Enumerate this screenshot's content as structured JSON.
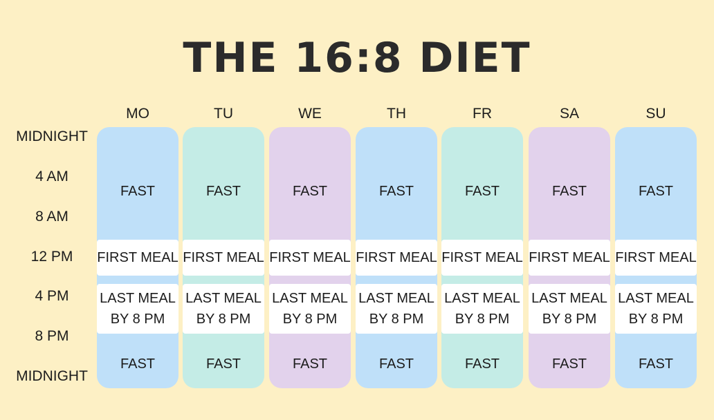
{
  "title": "THE 16:8 DIET",
  "time_labels": [
    "MIDNIGHT",
    "4 AM",
    "8 AM",
    "12 PM",
    "4 PM",
    "8 PM",
    "MIDNIGHT"
  ],
  "colors": {
    "background": "#fdf0c5",
    "blue": "#bfe0f9",
    "teal": "#c4ece6",
    "lavender": "#e2d2ec",
    "meal_box": "#ffffff"
  },
  "days": [
    {
      "label": "MO",
      "fast_top": "FAST",
      "first_meal": "FIRST MEAL",
      "last_meal": "LAST MEAL BY 8 PM",
      "fast_bottom": "FAST",
      "color": "#bfe0f9"
    },
    {
      "label": "TU",
      "fast_top": "FAST",
      "first_meal": "FIRST MEAL",
      "last_meal": "LAST MEAL BY 8 PM",
      "fast_bottom": "FAST",
      "color": "#c4ece6"
    },
    {
      "label": "WE",
      "fast_top": "FAST",
      "first_meal": "FIRST MEAL",
      "last_meal": "LAST MEAL BY 8 PM",
      "fast_bottom": "FAST",
      "color": "#e2d2ec"
    },
    {
      "label": "TH",
      "fast_top": "FAST",
      "first_meal": "FIRST MEAL",
      "last_meal": "LAST MEAL BY 8 PM",
      "fast_bottom": "FAST",
      "color": "#bfe0f9"
    },
    {
      "label": "FR",
      "fast_top": "FAST",
      "first_meal": "FIRST MEAL",
      "last_meal": "LAST MEAL BY 8 PM",
      "fast_bottom": "FAST",
      "color": "#c4ece6"
    },
    {
      "label": "SA",
      "fast_top": "FAST",
      "first_meal": "FIRST MEAL",
      "last_meal": "LAST MEAL BY 8 PM",
      "fast_bottom": "FAST",
      "color": "#e2d2ec"
    },
    {
      "label": "SU",
      "fast_top": "FAST",
      "first_meal": "FIRST MEAL",
      "last_meal": "LAST MEAL BY 8 PM",
      "fast_bottom": "FAST",
      "color": "#bfe0f9"
    }
  ]
}
